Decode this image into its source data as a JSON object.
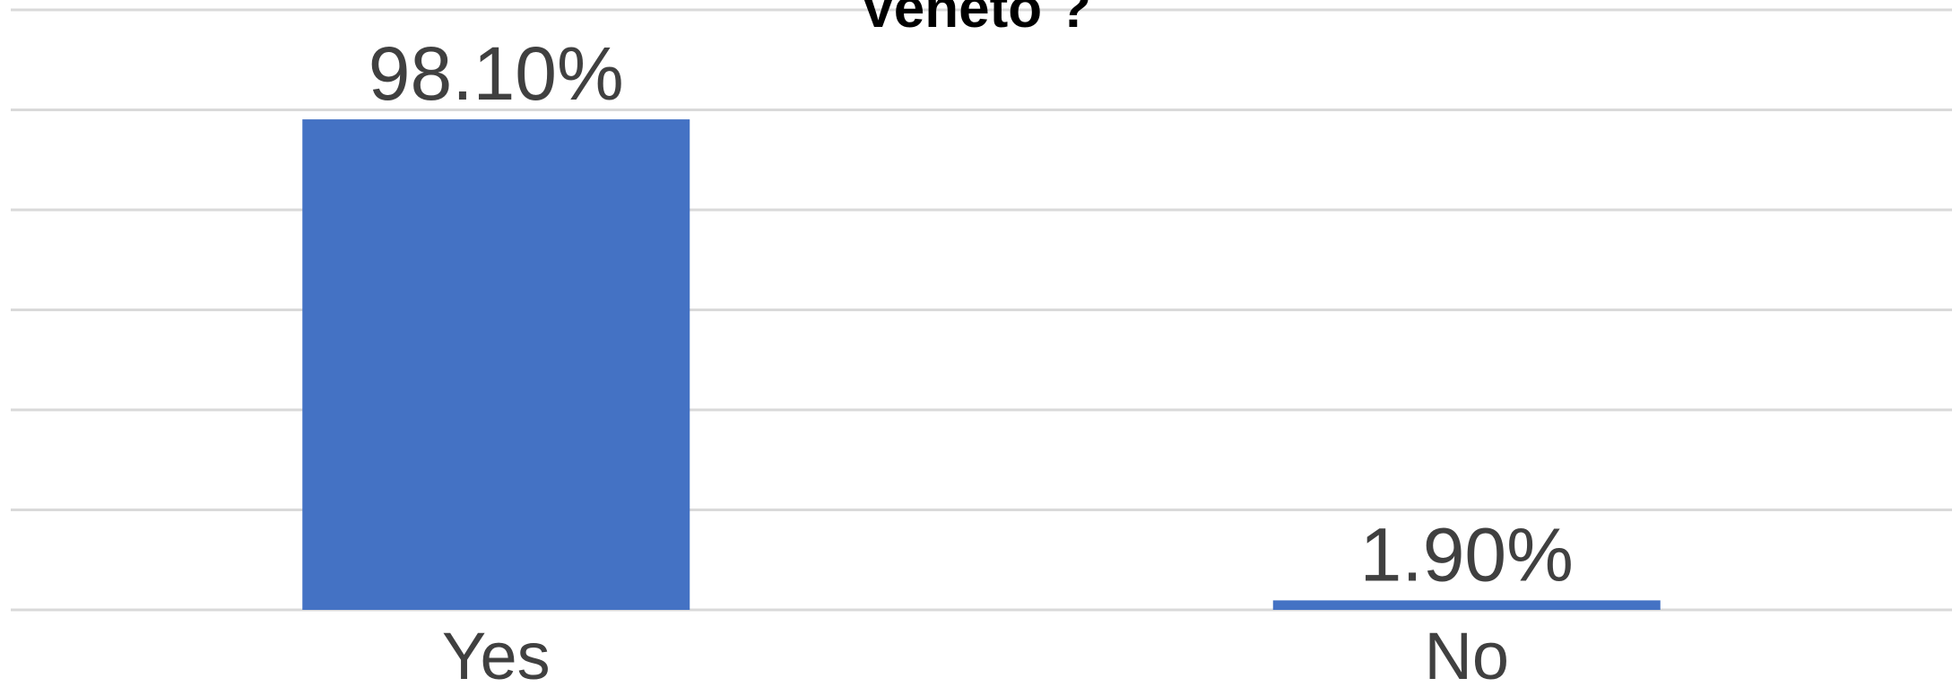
{
  "chart_data": {
    "type": "bar",
    "title": "Veneto ?",
    "categories": [
      "Yes",
      "No"
    ],
    "values": [
      98.1,
      1.9
    ],
    "data_labels": [
      "98.10%",
      "1.90%"
    ],
    "ylim": [
      0,
      120
    ],
    "y_grid_step": 20,
    "grid": true,
    "legend": "none",
    "colors": {
      "bar": "#4472C4",
      "grid": "#D9D9D9",
      "text": "#404040"
    }
  }
}
